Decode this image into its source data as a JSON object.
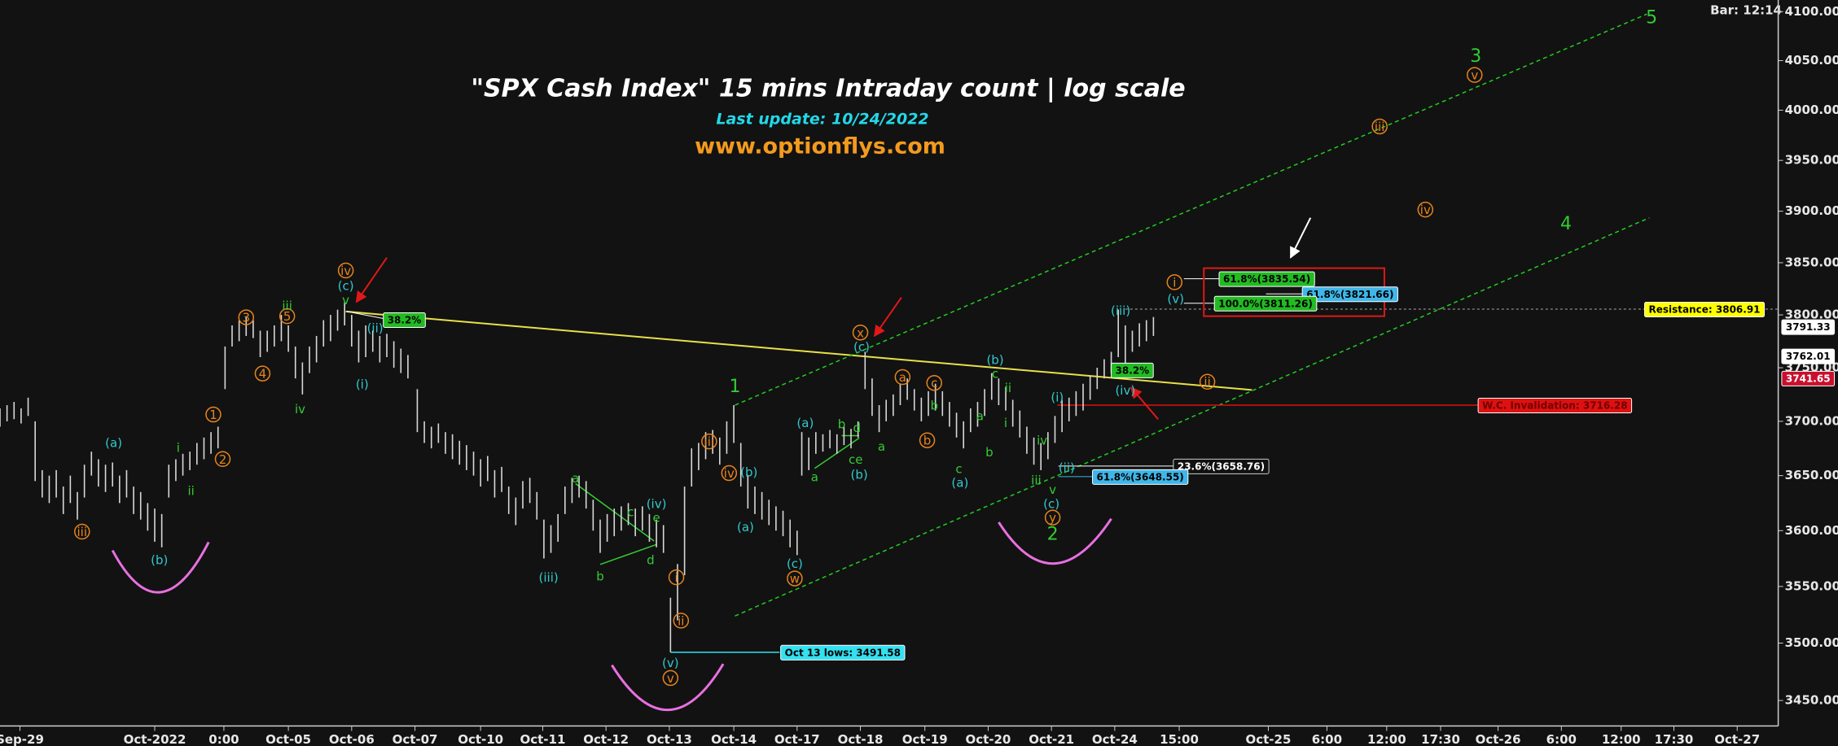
{
  "chart_data": {
    "type": "range",
    "title": "\"SPX Cash Index\" 15 mins Intraday count | log scale",
    "subtitle": "Last update: 10/24/2022",
    "website": "www.optionflys.com",
    "bar_info": "Bar: 12:14",
    "log_scale": true,
    "bar_color": "#d8d8d8",
    "ylim": [
      3428,
      4112
    ],
    "yticks": [
      {
        "value": 3450,
        "label": "3450.00"
      },
      {
        "value": 3500,
        "label": "3500.00"
      },
      {
        "value": 3550,
        "label": "3550.00"
      },
      {
        "value": 3600,
        "label": "3600.00"
      },
      {
        "value": 3650,
        "label": "3650.00"
      },
      {
        "value": 3700,
        "label": "3700.00"
      },
      {
        "value": 3750,
        "label": "3750.00"
      },
      {
        "value": 3800,
        "label": "3800.00"
      },
      {
        "value": 3850,
        "label": "3850.00"
      },
      {
        "value": 3900,
        "label": "3900.00"
      },
      {
        "value": 3950,
        "label": "3950.00"
      },
      {
        "value": 4000,
        "label": "4000.00"
      },
      {
        "value": 4050,
        "label": "4050.00"
      },
      {
        "value": 4100,
        "label": "4100.00"
      }
    ],
    "xlim": [
      0,
      1517
    ],
    "xticks": [
      {
        "value": 17,
        "label": "Sep-29"
      },
      {
        "value": 132,
        "label": "Oct-2022"
      },
      {
        "value": 191,
        "label": "0:00"
      },
      {
        "value": 246,
        "label": "Oct-05"
      },
      {
        "value": 300,
        "label": "Oct-06"
      },
      {
        "value": 354,
        "label": "Oct-07"
      },
      {
        "value": 410,
        "label": "Oct-10"
      },
      {
        "value": 463,
        "label": "Oct-11"
      },
      {
        "value": 517,
        "label": "Oct-12"
      },
      {
        "value": 571,
        "label": "Oct-13"
      },
      {
        "value": 626,
        "label": "Oct-14"
      },
      {
        "value": 680,
        "label": "Oct-17"
      },
      {
        "value": 734,
        "label": "Oct-18"
      },
      {
        "value": 789,
        "label": "Oct-19"
      },
      {
        "value": 843,
        "label": "Oct-20"
      },
      {
        "value": 897,
        "label": "Oct-21"
      },
      {
        "value": 951,
        "label": "Oct-24"
      },
      {
        "value": 1006,
        "label": "15:00"
      },
      {
        "value": 1082,
        "label": "Oct-25"
      },
      {
        "value": 1132,
        "label": "6:00"
      },
      {
        "value": 1183,
        "label": "12:00"
      },
      {
        "value": 1229,
        "label": "17:30"
      },
      {
        "value": 1278,
        "label": "Oct-26"
      },
      {
        "value": 1332,
        "label": "6:00"
      },
      {
        "value": 1383,
        "label": "12:00"
      },
      {
        "value": 1428,
        "label": "17:30"
      },
      {
        "value": 1482,
        "label": "Oct-27"
      }
    ],
    "x": [
      0,
      6,
      12,
      18,
      24,
      30,
      36,
      42,
      48,
      54,
      60,
      66,
      72,
      78,
      84,
      90,
      96,
      102,
      108,
      114,
      120,
      126,
      132,
      138,
      144,
      150,
      156,
      162,
      168,
      174,
      180,
      186,
      192,
      198,
      204,
      210,
      216,
      222,
      228,
      234,
      240,
      246,
      252,
      258,
      264,
      270,
      276,
      282,
      288,
      294,
      300,
      306,
      312,
      318,
      324,
      330,
      336,
      342,
      348,
      356,
      362,
      368,
      374,
      380,
      386,
      392,
      398,
      404,
      410,
      416,
      422,
      428,
      434,
      440,
      446,
      452,
      458,
      464,
      470,
      476,
      482,
      488,
      494,
      500,
      506,
      512,
      518,
      524,
      530,
      536,
      542,
      548,
      554,
      560,
      566,
      572,
      578,
      584,
      590,
      596,
      602,
      608,
      614,
      620,
      626,
      632,
      638,
      644,
      650,
      656,
      662,
      668,
      674,
      680,
      684,
      690,
      696,
      702,
      708,
      714,
      720,
      726,
      732,
      738,
      744,
      750,
      756,
      762,
      768,
      774,
      780,
      786,
      792,
      798,
      804,
      810,
      816,
      822,
      828,
      834,
      840,
      846,
      852,
      858,
      864,
      870,
      876,
      882,
      888,
      894,
      900,
      906,
      912,
      918,
      924,
      930,
      936,
      942,
      948,
      954,
      960,
      966,
      972,
      978,
      984
    ],
    "high": [
      3712,
      3715,
      3718,
      3712,
      3722,
      3700,
      3655,
      3650,
      3655,
      3640,
      3650,
      3635,
      3660,
      3672,
      3665,
      3660,
      3662,
      3650,
      3655,
      3640,
      3635,
      3625,
      3620,
      3615,
      3660,
      3665,
      3670,
      3672,
      3680,
      3685,
      3690,
      3695,
      3770,
      3790,
      3795,
      3798,
      3795,
      3785,
      3785,
      3790,
      3800,
      3790,
      3770,
      3755,
      3770,
      3780,
      3795,
      3800,
      3805,
      3812,
      3800,
      3785,
      3790,
      3785,
      3780,
      3782,
      3775,
      3768,
      3762,
      3730,
      3700,
      3695,
      3698,
      3690,
      3688,
      3682,
      3678,
      3672,
      3665,
      3668,
      3655,
      3658,
      3640,
      3630,
      3645,
      3648,
      3635,
      3610,
      3605,
      3615,
      3640,
      3648,
      3650,
      3645,
      3628,
      3610,
      3615,
      3620,
      3622,
      3625,
      3620,
      3622,
      3615,
      3610,
      3605,
      3540,
      3570,
      3640,
      3675,
      3680,
      3690,
      3692,
      3685,
      3700,
      3715,
      3680,
      3650,
      3640,
      3635,
      3628,
      3622,
      3618,
      3610,
      3600,
      3690,
      3685,
      3690,
      3688,
      3692,
      3688,
      3695,
      3693,
      3700,
      3765,
      3740,
      3715,
      3720,
      3725,
      3735,
      3740,
      3730,
      3722,
      3728,
      3735,
      3728,
      3718,
      3708,
      3700,
      3712,
      3718,
      3730,
      3745,
      3740,
      3732,
      3720,
      3710,
      3695,
      3685,
      3680,
      3690,
      3705,
      3720,
      3722,
      3728,
      3735,
      3742,
      3750,
      3758,
      3765,
      3805,
      3790,
      3785,
      3792,
      3795,
      3798
    ],
    "low": [
      3695,
      3700,
      3702,
      3698,
      3705,
      3645,
      3630,
      3625,
      3630,
      3615,
      3625,
      3610,
      3630,
      3650,
      3640,
      3635,
      3640,
      3625,
      3630,
      3615,
      3610,
      3600,
      3590,
      3585,
      3630,
      3645,
      3650,
      3655,
      3660,
      3665,
      3670,
      3675,
      3730,
      3770,
      3775,
      3780,
      3778,
      3760,
      3765,
      3770,
      3775,
      3765,
      3740,
      3725,
      3745,
      3755,
      3770,
      3775,
      3785,
      3790,
      3770,
      3755,
      3760,
      3765,
      3755,
      3760,
      3750,
      3745,
      3740,
      3690,
      3680,
      3675,
      3680,
      3670,
      3665,
      3660,
      3655,
      3650,
      3640,
      3645,
      3630,
      3635,
      3615,
      3605,
      3620,
      3625,
      3610,
      3575,
      3580,
      3590,
      3615,
      3625,
      3630,
      3620,
      3600,
      3580,
      3590,
      3595,
      3600,
      3605,
      3595,
      3600,
      3590,
      3585,
      3580,
      3492,
      3520,
      3560,
      3640,
      3655,
      3665,
      3670,
      3660,
      3670,
      3680,
      3640,
      3620,
      3615,
      3610,
      3605,
      3600,
      3595,
      3585,
      3578,
      3650,
      3655,
      3670,
      3672,
      3675,
      3670,
      3678,
      3675,
      3685,
      3730,
      3705,
      3690,
      3700,
      3705,
      3715,
      3720,
      3710,
      3700,
      3705,
      3710,
      3705,
      3695,
      3685,
      3675,
      3690,
      3695,
      3705,
      3720,
      3715,
      3710,
      3695,
      3685,
      3670,
      3660,
      3655,
      3665,
      3680,
      3690,
      3700,
      3705,
      3710,
      3720,
      3730,
      3740,
      3745,
      3760,
      3750,
      3765,
      3770,
      3775,
      3780
    ],
    "wave_labels": [
      {
        "text": "iii",
        "color": "#e8841c",
        "circled": true
      },
      {
        "text": "(a)",
        "color": "#33c8cc"
      },
      {
        "text": "(b)",
        "color": "#33c8cc"
      },
      {
        "text": "i",
        "color": "#33cc33"
      },
      {
        "text": "ii",
        "color": "#33cc33"
      },
      {
        "text": "1",
        "color": "#e8841c",
        "circled": true
      },
      {
        "text": "2",
        "color": "#e8841c",
        "circled": true
      },
      {
        "text": "3",
        "color": "#e8841c",
        "circled": true
      },
      {
        "text": "4",
        "color": "#e8841c",
        "circled": true
      },
      {
        "text": "5",
        "color": "#e8841c",
        "circled": true
      },
      {
        "text": "iii",
        "color": "#33cc33"
      },
      {
        "text": "iv",
        "color": "#33cc33"
      },
      {
        "text": "iv",
        "color": "#e8841c",
        "circled": true
      },
      {
        "text": "(c)",
        "color": "#33c8cc"
      },
      {
        "text": "v",
        "color": "#33cc33"
      },
      {
        "text": "(ii)",
        "color": "#33c8cc"
      },
      {
        "text": "(i)",
        "color": "#33c8cc"
      },
      {
        "text": "(iii)",
        "color": "#33c8cc"
      },
      {
        "text": "a",
        "color": "#33cc33"
      },
      {
        "text": "b",
        "color": "#33cc33"
      },
      {
        "text": "c",
        "color": "#33cc33"
      },
      {
        "text": "d",
        "color": "#33cc33"
      },
      {
        "text": "e",
        "color": "#33cc33"
      },
      {
        "text": "(iv)",
        "color": "#33c8cc"
      },
      {
        "text": "i",
        "color": "#e8841c",
        "circled": true
      },
      {
        "text": "ii",
        "color": "#e8841c",
        "circled": true
      },
      {
        "text": "iii",
        "color": "#e8841c",
        "circled": true
      },
      {
        "text": "iv",
        "color": "#e8841c",
        "circled": true
      },
      {
        "text": "(v)",
        "color": "#33c8cc"
      },
      {
        "text": "v",
        "color": "#e8841c",
        "circled": true
      },
      {
        "text": "1",
        "color": "#33cc33"
      },
      {
        "text": "(b)",
        "color": "#33c8cc"
      },
      {
        "text": "(a)",
        "color": "#33c8cc"
      },
      {
        "text": "(c)",
        "color": "#33c8cc"
      },
      {
        "text": "w",
        "color": "#e8841c",
        "circled": true
      },
      {
        "text": "(a)",
        "color": "#33c8cc"
      },
      {
        "text": "b",
        "color": "#33cc33"
      },
      {
        "text": "d",
        "color": "#33cc33"
      },
      {
        "text": "a",
        "color": "#33cc33"
      },
      {
        "text": "ce",
        "color": "#33cc33"
      },
      {
        "text": "(b)",
        "color": "#33c8cc"
      },
      {
        "text": "x",
        "color": "#e8841c",
        "circled": true
      },
      {
        "text": "(c)",
        "color": "#33c8cc"
      },
      {
        "text": "a",
        "color": "#e8841c",
        "circled": true
      },
      {
        "text": "c",
        "color": "#e8841c",
        "circled": true
      },
      {
        "text": "b",
        "color": "#e8841c",
        "circled": true
      },
      {
        "text": "a",
        "color": "#33cc33"
      },
      {
        "text": "c",
        "color": "#33cc33"
      },
      {
        "text": "(a)",
        "color": "#33c8cc"
      },
      {
        "text": "b",
        "color": "#33cc33"
      },
      {
        "text": "a",
        "color": "#33cc33"
      },
      {
        "text": "b",
        "color": "#33cc33"
      },
      {
        "text": "(b)",
        "color": "#33c8cc"
      },
      {
        "text": "c",
        "color": "#33cc33"
      },
      {
        "text": "ii",
        "color": "#33cc33"
      },
      {
        "text": "i",
        "color": "#33cc33"
      },
      {
        "text": "iv",
        "color": "#33cc33"
      },
      {
        "text": "iii",
        "color": "#33cc33"
      },
      {
        "text": "v",
        "color": "#33cc33"
      },
      {
        "text": "(i)",
        "color": "#33c8cc"
      },
      {
        "text": "(ii)",
        "color": "#33c8cc"
      },
      {
        "text": "(c)",
        "color": "#33c8cc"
      },
      {
        "text": "y",
        "color": "#e8841c",
        "circled": true
      },
      {
        "text": "2",
        "color": "#33cc33"
      },
      {
        "text": "(iii)",
        "color": "#33c8cc"
      },
      {
        "text": "(iv)",
        "color": "#33c8cc"
      },
      {
        "text": "ii",
        "color": "#e8841c",
        "circled": true
      },
      {
        "text": "i",
        "color": "#e8841c",
        "circled": true
      },
      {
        "text": "(v)",
        "color": "#33c8cc"
      },
      {
        "text": "iii",
        "color": "#e8841c",
        "circled": true
      },
      {
        "text": "v",
        "color": "#e8841c",
        "circled": true
      },
      {
        "text": "3",
        "color": "#33cc33"
      },
      {
        "text": "iv",
        "color": "#e8841c",
        "circled": true
      },
      {
        "text": "4",
        "color": "#33cc33"
      },
      {
        "text": "5",
        "color": "#33cc33"
      }
    ],
    "boxes": [
      {
        "text": "38.2%",
        "bg": "#22bb22",
        "fg": "#000000"
      },
      {
        "text": "38.2%",
        "bg": "#22bb22",
        "fg": "#000000"
      },
      {
        "text": "61.8%(3835.54)",
        "bg": "#22bb22",
        "fg": "#000000"
      },
      {
        "text": "61.8%(3821.66)",
        "bg": "#3fb6e8",
        "fg": "#000000"
      },
      {
        "text": "100.0%(3811.26)",
        "bg": "#22bb22",
        "fg": "#000000"
      },
      {
        "text": "23.6%(3658.76)",
        "bg": "#111111",
        "fg": "#ffffff"
      },
      {
        "text": "61.8%(3648.55)",
        "bg": "#3fb6e8",
        "fg": "#000000"
      },
      {
        "text": "Oct 13 lows: 3491.58",
        "bg": "#33e0f0",
        "fg": "#000000"
      },
      {
        "text": "Resistance: 3806.91",
        "bg": "#ffff00",
        "fg": "#000000"
      },
      {
        "text": "W.C. Invalidation: 3716.28",
        "bg": "#dd1111",
        "fg": "#700000"
      },
      {
        "text": "3791.33",
        "bg": "#ffffff",
        "fg": "#000000"
      },
      {
        "text": "3762.01",
        "bg": "#ffffff",
        "fg": "#000000"
      },
      {
        "text": "3741.65",
        "bg": "#c8102e",
        "fg": "#ffffff"
      }
    ]
  }
}
